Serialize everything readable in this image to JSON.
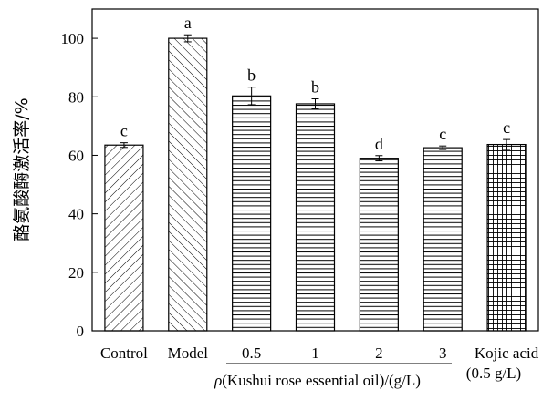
{
  "chart_data": {
    "type": "bar",
    "title": "",
    "ylabel": "酪氨酸酶激活率/%",
    "xlabel_prefix": "ρ",
    "xlabel_rest": "(Kushui rose essential oil)/(g/L)",
    "ylim": [
      0,
      110
    ],
    "yticks": [
      0,
      20,
      40,
      60,
      80,
      100
    ],
    "categories": [
      "Control",
      "Model",
      "0.5",
      "1",
      "2",
      "3",
      "Kojic acid"
    ],
    "kojic_sublabel": "(0.5 g/L)",
    "values": [
      63.5,
      100.0,
      80.3,
      77.6,
      59.0,
      62.6,
      63.7
    ],
    "errors": [
      0.8,
      1.2,
      3.0,
      1.7,
      0.9,
      0.6,
      1.7
    ],
    "significance": [
      "c",
      "a",
      "b",
      "b",
      "d",
      "c",
      "c"
    ],
    "patterns": [
      "diagonal-forward",
      "diagonal-back",
      "horizontal",
      "horizontal",
      "horizontal",
      "horizontal",
      "grid"
    ],
    "grid": false,
    "colors": {
      "stroke": "#000000",
      "fill": "#ffffff"
    }
  }
}
